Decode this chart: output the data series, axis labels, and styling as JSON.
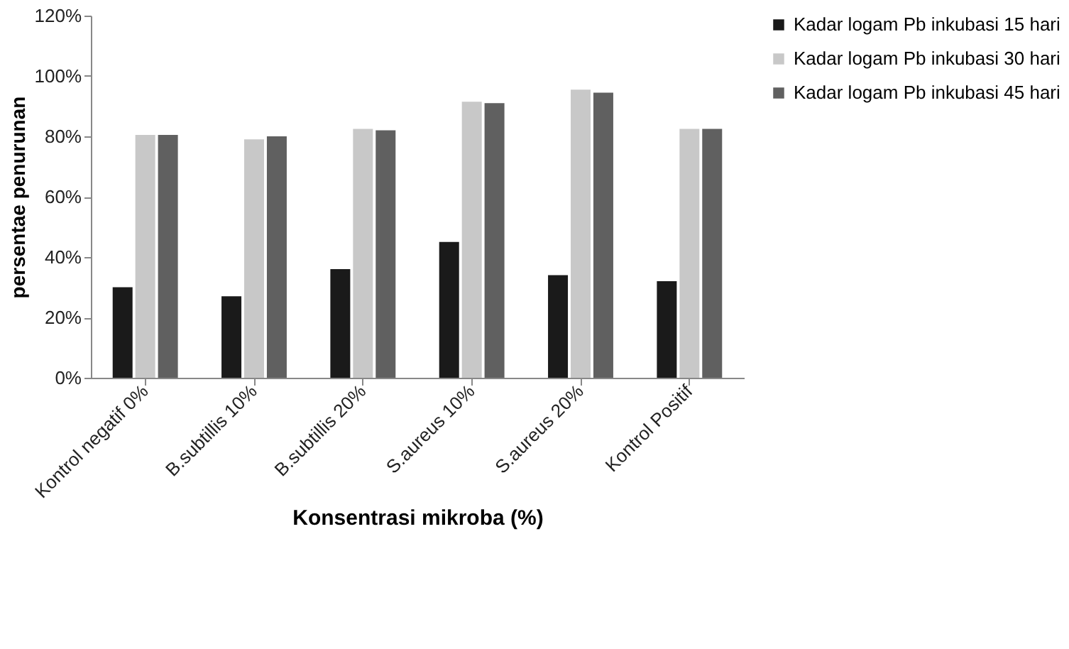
{
  "chart_data": {
    "type": "bar",
    "xlabel": "Konsentrasi mikroba (%)",
    "ylabel": "persentae penurunan",
    "categories": [
      "Kontrol negatif 0%",
      "B.subtillis 10%",
      "B.subtillis 20%",
      "S.aureus 10%",
      "S.aureus 20%",
      "Kontrol Positif"
    ],
    "series": [
      {
        "name": "Kadar logam Pb inkubasi 15 hari",
        "color": "#1a1a1a",
        "values": [
          30,
          27,
          36,
          45,
          34,
          32
        ]
      },
      {
        "name": "Kadar logam Pb inkubasi 30 hari",
        "color": "#c8c8c8",
        "values": [
          80.5,
          79,
          82.5,
          91.5,
          95.5,
          82.5
        ]
      },
      {
        "name": "Kadar logam Pb inkubasi 45 hari",
        "color": "#606060",
        "values": [
          80.5,
          80,
          82,
          91,
          94.5,
          82.5
        ]
      }
    ],
    "ylim": [
      0,
      120
    ],
    "yticks": [
      {
        "value": 0,
        "label": "0%"
      },
      {
        "value": 20,
        "label": "20%"
      },
      {
        "value": 40,
        "label": "40%"
      },
      {
        "value": 60,
        "label": "60%"
      },
      {
        "value": 80,
        "label": "80%"
      },
      {
        "value": 100,
        "label": "100%"
      },
      {
        "value": 120,
        "label": "120%"
      }
    ],
    "grid": false,
    "legend": "right"
  }
}
